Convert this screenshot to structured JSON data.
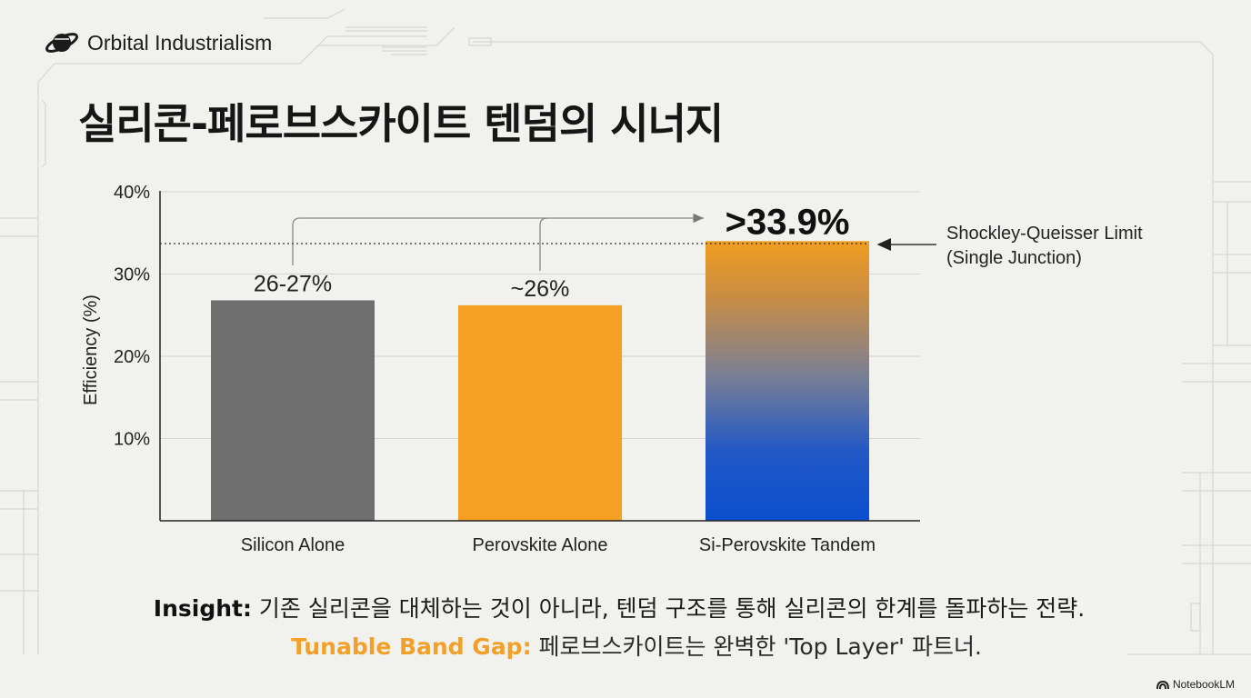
{
  "brand": {
    "name": "Orbital Industrialism",
    "icon": "planet-icon"
  },
  "title": "실리콘-페로브스카이트 텐덤의 시너지",
  "chart_data": {
    "type": "bar",
    "ylabel": "Efficiency (%)",
    "xlabel": "",
    "ylim": [
      0,
      40
    ],
    "yticks": [
      10,
      20,
      30,
      40
    ],
    "ytick_labels": [
      "10%",
      "20%",
      "30%",
      "40%"
    ],
    "grid": true,
    "categories": [
      "Silicon Alone",
      "Perovskite Alone",
      "Si-Perovskite Tandem"
    ],
    "values": [
      26.8,
      26.2,
      34.0
    ],
    "value_labels": [
      "26-27%",
      "~26%",
      ">33.9%"
    ],
    "colors": [
      "#6e6e6e",
      "#f59f25",
      "gradient #e89a2c to #0a4fcf"
    ],
    "reference_line": {
      "value": 33.7,
      "label_line1": "Shockley-Queisser Limit",
      "label_line2": "(Single Junction)",
      "style": "dotted"
    }
  },
  "insight": {
    "key": "Insight:",
    "text": " 기존 실리콘을 대체하는 것이 아니라, 텐덤 구조를 통해 실리콘의 한계를 돌파하는 전략."
  },
  "band_gap": {
    "key": "Tunable Band Gap:",
    "text": " 페로브스카이트는 완벽한 'Top Layer' 파트너."
  },
  "watermark": "NotebookLM"
}
